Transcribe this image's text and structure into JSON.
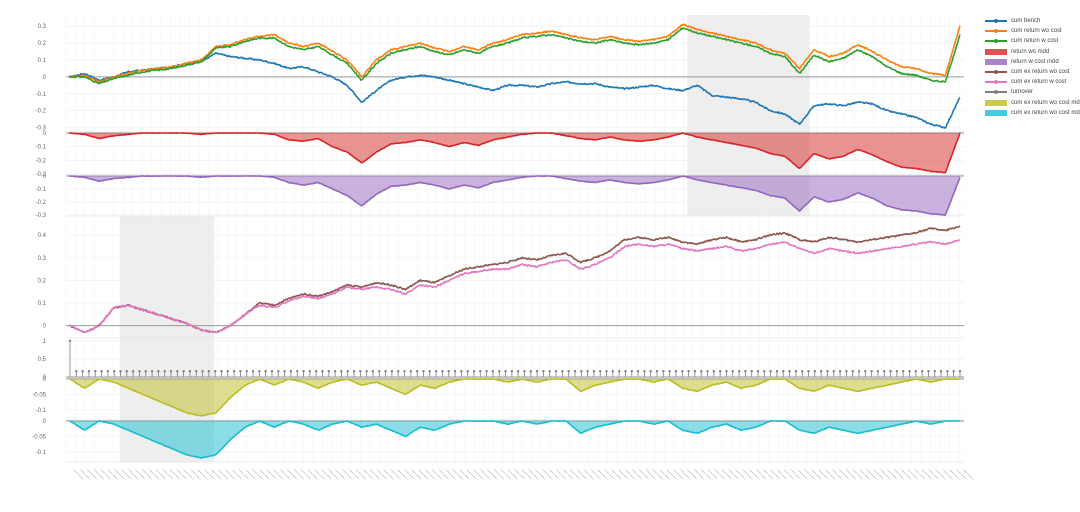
{
  "chart_data": {
    "type": "line",
    "legend": [
      {
        "name": "cum bench",
        "color": "#1f77b4",
        "style": "line"
      },
      {
        "name": "cum return wo cost",
        "color": "#ff7f0e",
        "style": "line"
      },
      {
        "name": "cum return w cost",
        "color": "#2ca02c",
        "style": "line"
      },
      {
        "name": "return wo mdd",
        "color": "#d62728",
        "style": "fill"
      },
      {
        "name": "return w cost mdd",
        "color": "#9467bd",
        "style": "fill"
      },
      {
        "name": "cum ex return wo cost",
        "color": "#8c564b",
        "style": "line"
      },
      {
        "name": "cum ex return w cost",
        "color": "#e377c2",
        "style": "line"
      },
      {
        "name": "turnover",
        "color": "#7f7f7f",
        "style": "line"
      },
      {
        "name": "cum ex return wo cost mdd",
        "color": "#bcbd22",
        "style": "fill"
      },
      {
        "name": "cum ex return wo cost mdd",
        "color": "#17becf",
        "style": "fill"
      }
    ],
    "panels": [
      {
        "id": "cum",
        "ylim": [
          -0.32,
          0.36
        ],
        "ticks": [
          "0.3",
          "0.2",
          "0.1",
          "0",
          "-0.1",
          "-0.2",
          "-0.3"
        ],
        "tick_values": [
          0.3,
          0.2,
          0.1,
          0,
          -0.1,
          -0.2,
          -0.3
        ],
        "series": [
          {
            "name": "cum bench",
            "color": "#1f77b4",
            "values": [
              0.0,
              0.02,
              -0.02,
              0.0,
              0.03,
              0.04,
              0.05,
              0.06,
              0.08,
              0.09,
              0.14,
              0.12,
              0.11,
              0.1,
              0.08,
              0.05,
              0.06,
              0.03,
              0.0,
              -0.05,
              -0.15,
              -0.08,
              -0.02,
              0.0,
              0.01,
              0.0,
              -0.02,
              -0.04,
              -0.06,
              -0.08,
              -0.05,
              -0.05,
              -0.06,
              -0.04,
              -0.03,
              -0.04,
              -0.04,
              -0.06,
              -0.07,
              -0.06,
              -0.05,
              -0.07,
              -0.08,
              -0.05,
              -0.11,
              -0.12,
              -0.13,
              -0.15,
              -0.2,
              -0.22,
              -0.28,
              -0.17,
              -0.16,
              -0.17,
              -0.15,
              -0.16,
              -0.2,
              -0.22,
              -0.24,
              -0.28,
              -0.3,
              -0.12
            ]
          },
          {
            "name": "cum return wo cost",
            "color": "#ff7f0e",
            "values": [
              0.0,
              0.01,
              -0.03,
              0.0,
              0.02,
              0.04,
              0.05,
              0.06,
              0.08,
              0.1,
              0.18,
              0.19,
              0.22,
              0.24,
              0.25,
              0.2,
              0.18,
              0.2,
              0.15,
              0.1,
              0.0,
              0.1,
              0.16,
              0.18,
              0.2,
              0.17,
              0.15,
              0.18,
              0.16,
              0.2,
              0.22,
              0.25,
              0.26,
              0.27,
              0.25,
              0.23,
              0.22,
              0.24,
              0.22,
              0.21,
              0.22,
              0.24,
              0.31,
              0.28,
              0.26,
              0.24,
              0.22,
              0.2,
              0.16,
              0.14,
              0.05,
              0.16,
              0.12,
              0.14,
              0.19,
              0.15,
              0.1,
              0.06,
              0.05,
              0.02,
              0.01,
              0.3
            ]
          },
          {
            "name": "cum return w cost",
            "color": "#2ca02c",
            "values": [
              0.0,
              0.0,
              -0.04,
              -0.01,
              0.01,
              0.03,
              0.04,
              0.05,
              0.07,
              0.09,
              0.17,
              0.18,
              0.21,
              0.23,
              0.23,
              0.18,
              0.16,
              0.18,
              0.13,
              0.08,
              -0.02,
              0.08,
              0.14,
              0.16,
              0.18,
              0.15,
              0.13,
              0.16,
              0.14,
              0.18,
              0.2,
              0.23,
              0.24,
              0.25,
              0.23,
              0.21,
              0.2,
              0.22,
              0.2,
              0.19,
              0.2,
              0.22,
              0.29,
              0.26,
              0.24,
              0.22,
              0.2,
              0.18,
              0.14,
              0.12,
              0.02,
              0.13,
              0.09,
              0.11,
              0.16,
              0.12,
              0.06,
              0.02,
              0.01,
              -0.02,
              -0.03,
              0.25
            ]
          }
        ]
      },
      {
        "id": "dd1",
        "ylim": [
          -0.3,
          0.0
        ],
        "ticks": [
          "0",
          "-0.1",
          "-0.2",
          "-0.3"
        ],
        "tick_values": [
          0,
          -0.1,
          -0.2,
          -0.3
        ],
        "series": [
          {
            "name": "return wo mdd",
            "color": "#d62728",
            "fill": true,
            "values": [
              0,
              -0.01,
              -0.04,
              -0.02,
              -0.01,
              0,
              0,
              0,
              0,
              -0.01,
              0,
              0,
              0,
              0,
              -0.01,
              -0.05,
              -0.06,
              -0.04,
              -0.1,
              -0.14,
              -0.22,
              -0.14,
              -0.08,
              -0.07,
              -0.05,
              -0.07,
              -0.1,
              -0.07,
              -0.09,
              -0.05,
              -0.03,
              -0.01,
              0,
              0,
              -0.02,
              -0.04,
              -0.05,
              -0.03,
              -0.05,
              -0.06,
              -0.05,
              -0.03,
              0,
              -0.03,
              -0.05,
              -0.07,
              -0.09,
              -0.11,
              -0.15,
              -0.17,
              -0.26,
              -0.15,
              -0.19,
              -0.17,
              -0.12,
              -0.16,
              -0.21,
              -0.25,
              -0.26,
              -0.28,
              -0.29,
              0
            ]
          }
        ]
      },
      {
        "id": "dd2",
        "ylim": [
          -0.3,
          0.0
        ],
        "ticks": [
          "0",
          "-0.1",
          "-0.2",
          "-0.3"
        ],
        "tick_values": [
          0,
          -0.1,
          -0.2,
          -0.3
        ],
        "series": [
          {
            "name": "return w cost mdd",
            "color": "#9467bd",
            "fill": true,
            "values": [
              0,
              -0.01,
              -0.04,
              -0.02,
              -0.01,
              0,
              0,
              0,
              0,
              -0.01,
              0,
              0,
              0,
              0,
              -0.01,
              -0.05,
              -0.07,
              -0.05,
              -0.1,
              -0.15,
              -0.23,
              -0.14,
              -0.08,
              -0.07,
              -0.05,
              -0.07,
              -0.1,
              -0.07,
              -0.09,
              -0.05,
              -0.03,
              -0.01,
              0,
              0,
              -0.02,
              -0.04,
              -0.05,
              -0.03,
              -0.05,
              -0.06,
              -0.05,
              -0.03,
              0,
              -0.03,
              -0.05,
              -0.07,
              -0.09,
              -0.11,
              -0.15,
              -0.17,
              -0.27,
              -0.16,
              -0.2,
              -0.18,
              -0.13,
              -0.17,
              -0.23,
              -0.26,
              -0.27,
              -0.29,
              -0.3,
              -0.01
            ]
          }
        ]
      },
      {
        "id": "ex",
        "ylim": [
          -0.05,
          0.48
        ],
        "ticks": [
          "0.4",
          "0.3",
          "0.2",
          "0.1",
          "0"
        ],
        "tick_values": [
          0.4,
          0.3,
          0.2,
          0.1,
          0
        ],
        "series": [
          {
            "name": "cum ex return wo cost",
            "color": "#8c564b",
            "values": [
              0.0,
              -0.03,
              0.0,
              0.08,
              0.09,
              0.07,
              0.05,
              0.03,
              0.01,
              -0.02,
              -0.03,
              0.0,
              0.05,
              0.1,
              0.09,
              0.12,
              0.14,
              0.13,
              0.15,
              0.18,
              0.17,
              0.19,
              0.18,
              0.16,
              0.2,
              0.19,
              0.22,
              0.25,
              0.26,
              0.27,
              0.28,
              0.3,
              0.29,
              0.31,
              0.32,
              0.28,
              0.3,
              0.33,
              0.38,
              0.39,
              0.38,
              0.39,
              0.37,
              0.36,
              0.38,
              0.39,
              0.37,
              0.38,
              0.4,
              0.41,
              0.38,
              0.37,
              0.39,
              0.38,
              0.37,
              0.38,
              0.39,
              0.4,
              0.41,
              0.43,
              0.42,
              0.44
            ]
          },
          {
            "name": "cum ex return w cost",
            "color": "#e377c2",
            "values": [
              0.0,
              -0.03,
              0.0,
              0.08,
              0.09,
              0.07,
              0.05,
              0.03,
              0.01,
              -0.02,
              -0.03,
              0.0,
              0.05,
              0.09,
              0.08,
              0.11,
              0.13,
              0.12,
              0.14,
              0.17,
              0.16,
              0.17,
              0.16,
              0.14,
              0.18,
              0.17,
              0.2,
              0.23,
              0.24,
              0.25,
              0.25,
              0.27,
              0.26,
              0.28,
              0.29,
              0.25,
              0.27,
              0.3,
              0.35,
              0.36,
              0.35,
              0.36,
              0.34,
              0.33,
              0.34,
              0.35,
              0.33,
              0.34,
              0.36,
              0.37,
              0.34,
              0.32,
              0.34,
              0.33,
              0.32,
              0.33,
              0.34,
              0.35,
              0.36,
              0.37,
              0.36,
              0.38
            ]
          }
        ]
      },
      {
        "id": "turnover",
        "ylim": [
          0,
          1.05
        ],
        "ticks": [
          "1",
          "0.5",
          "0"
        ],
        "tick_values": [
          1,
          0.5,
          0
        ],
        "series": [
          {
            "name": "turnover",
            "color": "#7f7f7f",
            "first": 1.0,
            "rest": 0.16,
            "count": 142
          }
        ]
      },
      {
        "id": "dd3",
        "ylim": [
          -0.13,
          0.0
        ],
        "ticks": [
          "0",
          "-0.05",
          "-0.1"
        ],
        "tick_values": [
          0,
          -0.05,
          -0.1
        ],
        "series": [
          {
            "name": "cum ex return wo cost mdd",
            "color": "#bcbd22",
            "fill": true,
            "values": [
              0,
              -0.03,
              0,
              -0.01,
              -0.03,
              -0.05,
              -0.07,
              -0.09,
              -0.11,
              -0.12,
              -0.11,
              -0.06,
              -0.02,
              0,
              -0.02,
              0,
              -0.01,
              -0.03,
              -0.01,
              0,
              -0.02,
              -0.01,
              -0.03,
              -0.05,
              -0.02,
              -0.03,
              -0.01,
              0,
              0,
              0,
              -0.01,
              0,
              -0.01,
              0,
              0,
              -0.04,
              -0.02,
              -0.01,
              0,
              0,
              -0.01,
              0,
              -0.03,
              -0.04,
              -0.02,
              -0.01,
              -0.03,
              -0.02,
              0,
              0,
              -0.03,
              -0.04,
              -0.02,
              -0.03,
              -0.04,
              -0.03,
              -0.02,
              -0.01,
              0,
              -0.01,
              0,
              0
            ]
          }
        ]
      },
      {
        "id": "dd4",
        "ylim": [
          -0.13,
          0.0
        ],
        "ticks": [
          "0",
          "-0.05",
          "-0.1"
        ],
        "tick_values": [
          0,
          -0.05,
          -0.1
        ],
        "series": [
          {
            "name": "cum ex return wo cost mdd",
            "color": "#17becf",
            "fill": true,
            "values": [
              0,
              -0.03,
              0,
              -0.01,
              -0.03,
              -0.05,
              -0.07,
              -0.09,
              -0.11,
              -0.12,
              -0.11,
              -0.06,
              -0.02,
              0,
              -0.02,
              0,
              -0.01,
              -0.03,
              -0.01,
              0,
              -0.02,
              -0.01,
              -0.03,
              -0.05,
              -0.02,
              -0.03,
              -0.01,
              0,
              0,
              0,
              -0.01,
              0,
              -0.01,
              0,
              0,
              -0.04,
              -0.02,
              -0.01,
              0,
              0,
              -0.01,
              0,
              -0.03,
              -0.04,
              -0.02,
              -0.01,
              -0.03,
              -0.02,
              0,
              0,
              -0.03,
              -0.04,
              -0.02,
              -0.03,
              -0.04,
              -0.03,
              -0.02,
              -0.01,
              0,
              -0.01,
              0,
              0
            ]
          }
        ]
      }
    ],
    "shaded_periods": [
      {
        "panels": [
          "cum",
          "dd1",
          "dd2"
        ],
        "x_range": [
          0.692,
          0.828
        ]
      },
      {
        "panels": [
          "ex",
          "turnover",
          "dd3",
          "dd4"
        ],
        "x_range": [
          0.06,
          0.165
        ]
      }
    ]
  }
}
